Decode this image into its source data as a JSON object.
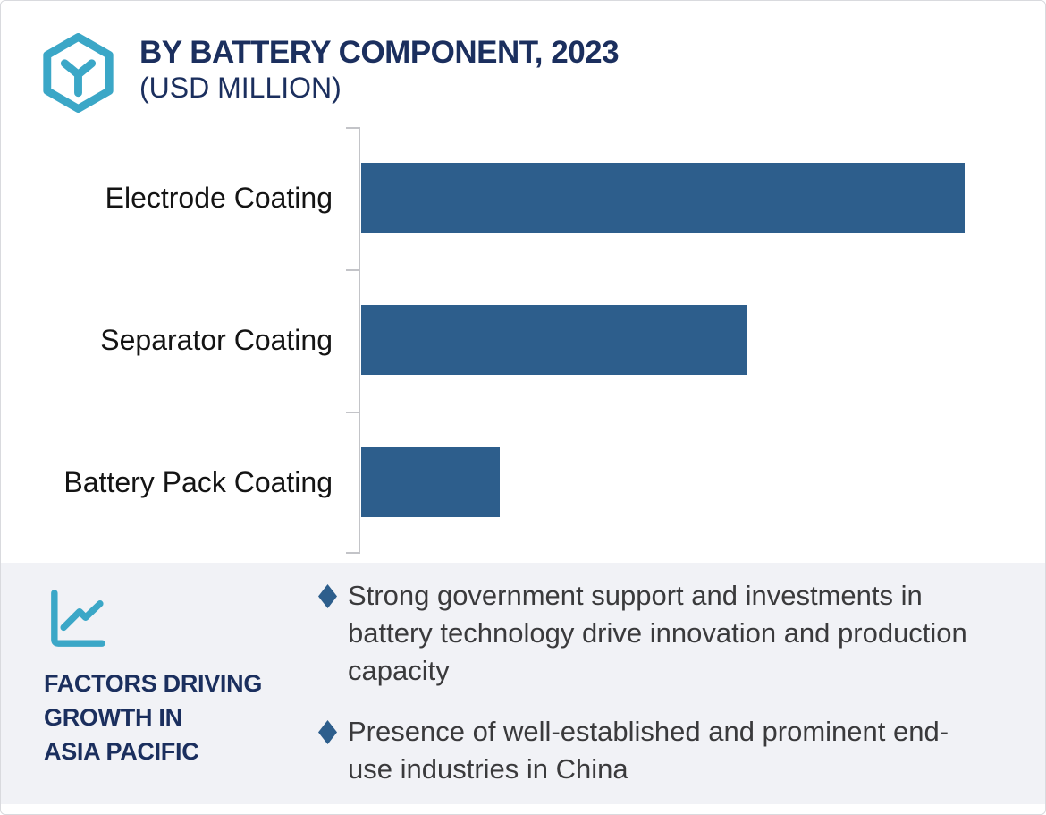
{
  "header": {
    "title": "BY BATTERY COMPONENT, 2023",
    "subtitle": "(USD MILLION)"
  },
  "chart_data": {
    "type": "bar",
    "orientation": "horizontal",
    "title": "BY BATTERY COMPONENT, 2023",
    "subtitle": "(USD MILLION)",
    "unit": "USD Million",
    "categories": [
      "Electrode Coating",
      "Separator Coating",
      "Battery Pack Coating"
    ],
    "values_relative_pct_of_max": [
      100,
      64,
      23
    ],
    "value_labels_shown": false,
    "axis_numeric_labels_shown": false,
    "grid": false,
    "legend": false,
    "bar_color": "#2d5e8c",
    "axis_color": "#c3c4c8"
  },
  "factors_panel": {
    "heading_lines": [
      "FACTORS DRIVING",
      "GROWTH IN",
      "ASIA PACIFIC"
    ],
    "bullets": [
      "Strong government support and investments in battery technology drive innovation and production capacity",
      "Presence of well-established and prominent end-use industries in China"
    ]
  },
  "colors": {
    "accent_teal": "#3ba7c7",
    "navy_text": "#1b2f5e",
    "bar_blue": "#2d5e8c",
    "panel_bg": "#f1f2f6",
    "body_text": "#3a3a3c",
    "axis_gray": "#c3c4c8",
    "border": "#d9dade"
  },
  "icons": {
    "logo": "hexagon-y-logo-icon",
    "panel_icon": "line-chart-icon",
    "bullet_marker": "diamond-bullet-icon"
  }
}
